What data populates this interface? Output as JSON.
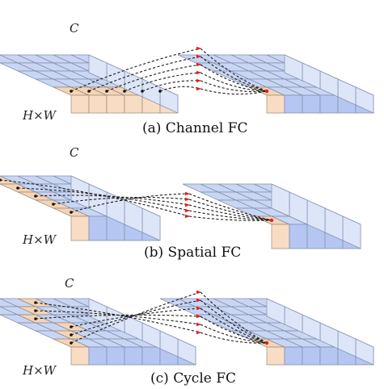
{
  "panels": [
    {
      "id": "a",
      "caption": "(a) Channel FC",
      "c_label": "C",
      "hw_label": "H×W",
      "pattern": "channel"
    },
    {
      "id": "b",
      "caption": "(b) Spatial FC",
      "c_label": "C",
      "hw_label": "H×W",
      "pattern": "spatial"
    },
    {
      "id": "c",
      "caption": "(c) Cycle FC",
      "c_label": "C",
      "hw_label": "H×W",
      "pattern": "cycle"
    }
  ],
  "colors": {
    "grid_fill": "#c9d6f3",
    "highlight_fill": "#f5d4b6",
    "connector": "#1a1a1a",
    "arrow_tip": "#e0201c"
  }
}
